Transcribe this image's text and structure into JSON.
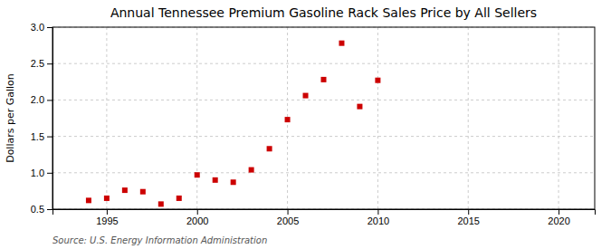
{
  "chart_data": {
    "type": "scatter",
    "title": "Annual Tennessee Premium Gasoline Rack Sales Price by All Sellers",
    "ylabel": "Dollars per Gallon",
    "annotations": [
      "Source: U.S. Energy Information Administration"
    ],
    "x": [
      1994,
      1995,
      1996,
      1997,
      1998,
      1999,
      2000,
      2001,
      2002,
      2003,
      2004,
      2005,
      2006,
      2007,
      2008,
      2009,
      2010
    ],
    "values": [
      0.62,
      0.65,
      0.76,
      0.74,
      0.57,
      0.65,
      0.97,
      0.9,
      0.87,
      1.04,
      1.33,
      1.73,
      2.06,
      2.28,
      2.78,
      1.91,
      2.27
    ],
    "color": "#cc0000",
    "marker": "square",
    "xlim": [
      1992,
      2022
    ],
    "xticks": [
      1995,
      2000,
      2005,
      2010,
      2015,
      2020
    ],
    "ylim": [
      0.5,
      3.0
    ],
    "yticks": [
      0.5,
      {
        "value": 1.0,
        "label": "1.0"
      },
      1.5,
      {
        "value": 2.0,
        "label": "2.0"
      },
      2.5,
      {
        "value": 3.0,
        "label": "3.0"
      }
    ],
    "grid": true
  }
}
